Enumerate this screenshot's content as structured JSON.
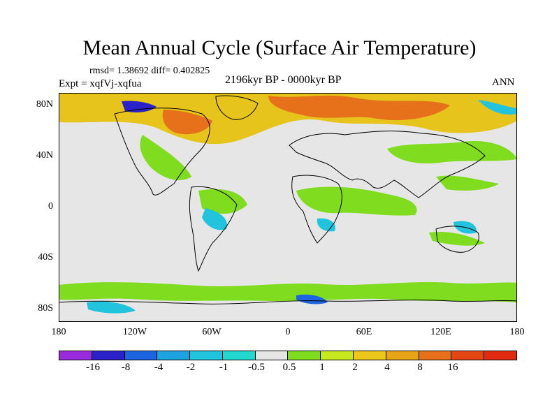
{
  "title": "Mean Annual Cycle (Surface Air Temperature)",
  "stats": "rmsd= 1.38692 diff= 0.402825",
  "experiment": "Expt = xqfVj-xqfua",
  "period": "2196kyr BP - 0000kyr BP",
  "season": "ANN",
  "lat_labels": [
    "80N",
    "40N",
    "0",
    "40S",
    "80S"
  ],
  "lon_labels": [
    "180",
    "120W",
    "60W",
    "0",
    "60E",
    "120E",
    "180"
  ],
  "colorbar": {
    "colors": [
      "#9a2bdc",
      "#2a22c8",
      "#1e63e0",
      "#1ea3e0",
      "#22c3dc",
      "#22d8cf",
      "#e6e6e6",
      "#7fdc1f",
      "#c7e81e",
      "#ecc81c",
      "#e8a417",
      "#e6711a",
      "#e24714",
      "#e12a10"
    ],
    "labels": [
      "-16",
      "-8",
      "-4",
      "-2",
      "-1",
      "-0.5",
      "0.5",
      "1",
      "2",
      "4",
      "8",
      "16"
    ]
  },
  "icons": {
    "land_outline": "coastline-outline"
  }
}
